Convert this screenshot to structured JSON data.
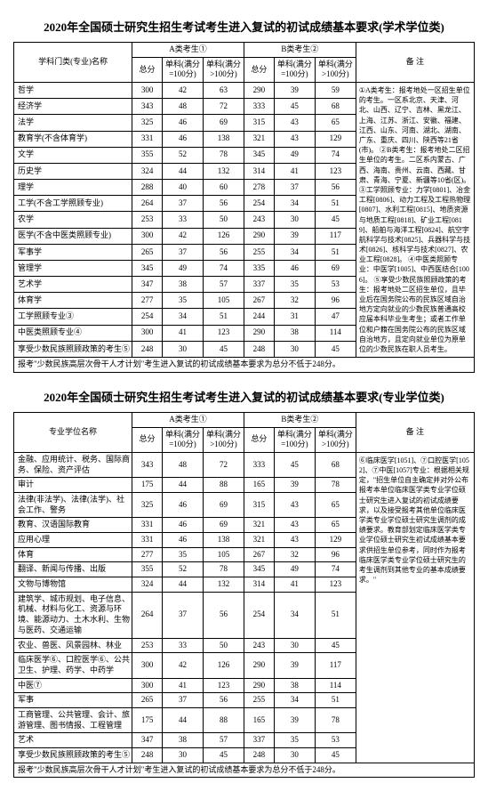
{
  "title1": "2020年全国硕士研究生招生考试考生进入复试的初试成绩基本要求(学术学位类)",
  "title2": "2020年全国硕士研究生招生考试考生进入复试的初试成绩基本要求(专业学位类)",
  "headers": {
    "name1": "学科门类(专业)名称",
    "name2": "专业学位名称",
    "catA": "A类考生①",
    "catB": "B类考生②",
    "total": "总分",
    "sub1": "单科(满分=100分)",
    "sub2": "单科(满分>100分)",
    "notes": "备  注"
  },
  "table1_rows": [
    {
      "n": "哲学",
      "a": [
        300,
        42,
        63
      ],
      "b": [
        290,
        39,
        59
      ]
    },
    {
      "n": "经济学",
      "a": [
        343,
        48,
        72
      ],
      "b": [
        333,
        45,
        68
      ]
    },
    {
      "n": "法学",
      "a": [
        325,
        46,
        69
      ],
      "b": [
        315,
        43,
        65
      ]
    },
    {
      "n": "教育学(不含体育学)",
      "a": [
        331,
        46,
        138
      ],
      "b": [
        321,
        43,
        129
      ]
    },
    {
      "n": "文学",
      "a": [
        355,
        52,
        78
      ],
      "b": [
        345,
        49,
        74
      ]
    },
    {
      "n": "历史学",
      "a": [
        324,
        44,
        132
      ],
      "b": [
        314,
        41,
        123
      ]
    },
    {
      "n": "理学",
      "a": [
        288,
        40,
        60
      ],
      "b": [
        278,
        37,
        56
      ]
    },
    {
      "n": "工学(不含工学照顾专业)",
      "a": [
        264,
        37,
        56
      ],
      "b": [
        254,
        34,
        51
      ]
    },
    {
      "n": "农学",
      "a": [
        253,
        33,
        50
      ],
      "b": [
        243,
        30,
        45
      ]
    },
    {
      "n": "医学(不含中医类照顾专业)",
      "a": [
        300,
        42,
        126
      ],
      "b": [
        290,
        39,
        117
      ]
    },
    {
      "n": "军事学",
      "a": [
        265,
        37,
        56
      ],
      "b": [
        255,
        34,
        51
      ]
    },
    {
      "n": "管理学",
      "a": [
        345,
        49,
        74
      ],
      "b": [
        335,
        46,
        69
      ]
    },
    {
      "n": "艺术学",
      "a": [
        347,
        38,
        57
      ],
      "b": [
        337,
        35,
        53
      ]
    },
    {
      "n": "体育学",
      "a": [
        277,
        35,
        105
      ],
      "b": [
        267,
        32,
        96
      ]
    },
    {
      "n": "工学照顾专业③",
      "a": [
        254,
        34,
        51
      ],
      "b": [
        244,
        31,
        47
      ]
    },
    {
      "n": "中医类照顾专业④",
      "a": [
        300,
        41,
        123
      ],
      "b": [
        290,
        38,
        114
      ]
    },
    {
      "n": "享受少数民族照顾政策的考生⑤",
      "a": [
        248,
        30,
        45
      ],
      "b": [
        248,
        30,
        45
      ]
    }
  ],
  "table2_rows": [
    {
      "n": "金融、应用统计、税务、国际商务、保险、资产评估",
      "a": [
        343,
        48,
        72
      ],
      "b": [
        333,
        45,
        68
      ]
    },
    {
      "n": "审计",
      "a": [
        175,
        44,
        88
      ],
      "b": [
        165,
        39,
        78
      ]
    },
    {
      "n": "法律(非法学)、法律(法学)、社会工作、警务",
      "a": [
        325,
        46,
        69
      ],
      "b": [
        315,
        43,
        65
      ]
    },
    {
      "n": "教育、汉语国际教育",
      "a": [
        331,
        46,
        69
      ],
      "b": [
        321,
        43,
        65
      ]
    },
    {
      "n": "应用心理",
      "a": [
        331,
        46,
        138
      ],
      "b": [
        321,
        43,
        129
      ]
    },
    {
      "n": "体育",
      "a": [
        277,
        35,
        105
      ],
      "b": [
        267,
        32,
        96
      ]
    },
    {
      "n": "翻译、新闻与传播、出版",
      "a": [
        355,
        52,
        78
      ],
      "b": [
        345,
        49,
        74
      ]
    },
    {
      "n": "文物与博物馆",
      "a": [
        324,
        44,
        132
      ],
      "b": [
        314,
        41,
        123
      ]
    },
    {
      "n": "建筑学、城市规划、电子信息、机械、材料与化工、资源与环境、能源动力、土木水利、生物与医药、交通运输",
      "a": [
        264,
        37,
        56
      ],
      "b": [
        254,
        34,
        51
      ]
    },
    {
      "n": "农业、兽医、风景园林、林业",
      "a": [
        253,
        33,
        50
      ],
      "b": [
        243,
        30,
        45
      ]
    },
    {
      "n": "临床医学⑥、口腔医学⑥、公共卫生、护理、药学、中药学",
      "a": [
        300,
        42,
        126
      ],
      "b": [
        290,
        39,
        117
      ]
    },
    {
      "n": "中医⑦",
      "a": [
        300,
        41,
        123
      ],
      "b": [
        290,
        38,
        114
      ]
    },
    {
      "n": "军事",
      "a": [
        265,
        37,
        56
      ],
      "b": [
        255,
        34,
        51
      ]
    },
    {
      "n": "工商管理、公共管理、会计、旅游管理、图书情报、工程管理",
      "a": [
        175,
        44,
        88
      ],
      "b": [
        165,
        39,
        78
      ]
    },
    {
      "n": "艺术",
      "a": [
        347,
        38,
        57
      ],
      "b": [
        337,
        35,
        53
      ]
    },
    {
      "n": "享受少数民族照顾政策的考生⑤",
      "a": [
        248,
        30,
        45
      ],
      "b": [
        248,
        30,
        45
      ]
    }
  ],
  "footer1": "报考\"少数民族高层次骨干人才计划\"考生进入复试的初试成绩基本要求为总分不低于248分。",
  "footer2": "报考\"少数民族高层次骨干人才计划\"考生进入复试的初试成绩基本要求为总分不低于248分。",
  "notes1": "①A类考生：报考地处一区招生单位的考生。一区系北京、天津、河北、山西、辽宁、吉林、黑龙江、上海、江苏、浙江、安徽、福建、江西、山东、河南、湖北、湖南、广东、重庆、四川、陕西等21省(市)。\n②B类考生：报考地处二区招生单位的考生。二区系内蒙古、广西、海南、贵州、云南、西藏、甘肃、青海、宁夏、新疆等10省(区)。\n③工学照顾专业：力学[0801]、冶金工程[0806]、动力工程及工程热物理[0807]、水利工程[0815]、地质资源与地质工程[0818]、矿业工程[0819]、船舶与海洋工程[0824]、航空宇航科学与技术[0825]、兵器科学与技术[0826]、核科学与技术[0827]、农业工程[0828]。\n④中医类照顾专业：中医学[1005]、中西医结合[1006]。\n⑤享受少数民族照顾政策的考生：报考地处二区招生单位，且毕业后在国务院公布的民族区域自治地方定向就业的少数民族普通高校应届本科毕业生考生；或者工作单位和户籍在国务院公布的民族区域自治地方，且定向就业单位为原单位的少数民族在职人员考生。",
  "notes2": "⑥临床医学[1051]、⑦口腔医学[1052]、⑦中医[1057]专业：根据相关规定，\"招生单位自主确定并对外公布报考本单位临床医学类专业学位硕士研究生进入复试的初试成绩要求，以及接受报考其他单位临床医学类专业学位硕士研究生调剂的成绩要求。教育部划定临床医学类专业学位硕士研究生初试成绩基本要求供招生单位参考，同时作为报考临床医学类专业学位硕士研究生的考生调剂到其他专业的基本成绩要求。\""
}
